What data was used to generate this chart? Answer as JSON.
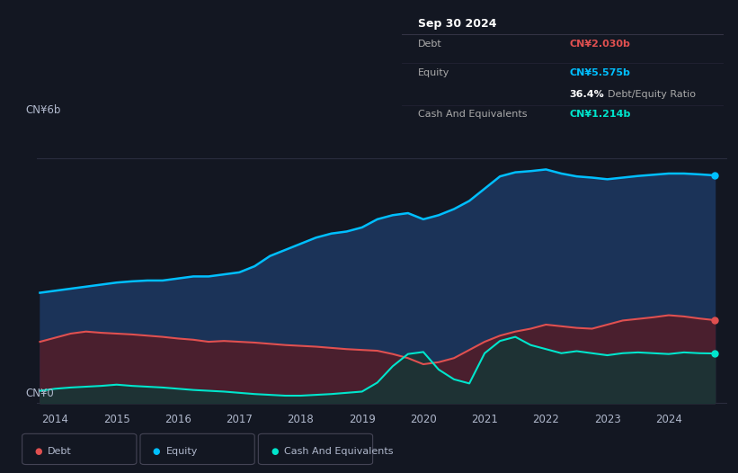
{
  "bg_color": "#131722",
  "plot_bg_color": "#131722",
  "tooltip": {
    "date": "Sep 30 2024",
    "debt_label": "Debt",
    "debt_value": "CN¥2.030b",
    "debt_color": "#e05050",
    "equity_label": "Equity",
    "equity_value": "CN¥5.575b",
    "equity_color": "#00bfff",
    "ratio_value": "36.4%",
    "ratio_label": "Debt/Equity Ratio",
    "cash_label": "Cash And Equivalents",
    "cash_value": "CN¥1.214b",
    "cash_color": "#00e5cc"
  },
  "ylabel_top": "CN¥6b",
  "ylabel_bottom": "CN¥0",
  "xlim": [
    2013.7,
    2024.95
  ],
  "ylim": [
    -0.15,
    6.8
  ],
  "xticks": [
    2014,
    2015,
    2016,
    2017,
    2018,
    2019,
    2020,
    2021,
    2022,
    2023,
    2024
  ],
  "equity_color": "#00bfff",
  "equity_fill": "#1b3358",
  "debt_color": "#e05050",
  "debt_fill": "#4a1f2e",
  "cash_color": "#00e5cc",
  "cash_fill": "#1a3535",
  "grid_color": "#2a2d3e",
  "text_color": "#b0b8cc",
  "legend_items": [
    {
      "label": "Debt",
      "color": "#e05050"
    },
    {
      "label": "Equity",
      "color": "#00bfff"
    },
    {
      "label": "Cash And Equivalents",
      "color": "#00e5cc"
    }
  ],
  "years": [
    2013.75,
    2014.0,
    2014.25,
    2014.5,
    2014.75,
    2015.0,
    2015.25,
    2015.5,
    2015.75,
    2016.0,
    2016.25,
    2016.5,
    2016.75,
    2017.0,
    2017.25,
    2017.5,
    2017.75,
    2018.0,
    2018.25,
    2018.5,
    2018.75,
    2019.0,
    2019.25,
    2019.5,
    2019.75,
    2020.0,
    2020.25,
    2020.5,
    2020.75,
    2021.0,
    2021.25,
    2021.5,
    2021.75,
    2022.0,
    2022.25,
    2022.5,
    2022.75,
    2023.0,
    2023.25,
    2023.5,
    2023.75,
    2024.0,
    2024.25,
    2024.5,
    2024.75
  ],
  "equity": [
    2.7,
    2.75,
    2.8,
    2.85,
    2.9,
    2.95,
    2.98,
    3.0,
    3.0,
    3.05,
    3.1,
    3.1,
    3.15,
    3.2,
    3.35,
    3.6,
    3.75,
    3.9,
    4.05,
    4.15,
    4.2,
    4.3,
    4.5,
    4.6,
    4.65,
    4.5,
    4.6,
    4.75,
    4.95,
    5.25,
    5.55,
    5.65,
    5.68,
    5.72,
    5.62,
    5.55,
    5.52,
    5.48,
    5.52,
    5.56,
    5.59,
    5.62,
    5.62,
    5.6,
    5.575
  ],
  "debt": [
    1.5,
    1.6,
    1.7,
    1.75,
    1.72,
    1.7,
    1.68,
    1.65,
    1.62,
    1.58,
    1.55,
    1.5,
    1.52,
    1.5,
    1.48,
    1.45,
    1.42,
    1.4,
    1.38,
    1.35,
    1.32,
    1.3,
    1.28,
    1.2,
    1.1,
    0.95,
    1.0,
    1.1,
    1.3,
    1.5,
    1.65,
    1.75,
    1.82,
    1.92,
    1.88,
    1.84,
    1.82,
    1.92,
    2.02,
    2.06,
    2.1,
    2.15,
    2.12,
    2.07,
    2.03
  ],
  "cash": [
    0.3,
    0.35,
    0.38,
    0.4,
    0.42,
    0.45,
    0.42,
    0.4,
    0.38,
    0.35,
    0.32,
    0.3,
    0.28,
    0.25,
    0.22,
    0.2,
    0.18,
    0.18,
    0.2,
    0.22,
    0.25,
    0.28,
    0.5,
    0.9,
    1.2,
    1.25,
    0.82,
    0.58,
    0.48,
    1.22,
    1.52,
    1.62,
    1.42,
    1.32,
    1.22,
    1.27,
    1.22,
    1.17,
    1.22,
    1.24,
    1.22,
    1.2,
    1.24,
    1.22,
    1.214
  ]
}
